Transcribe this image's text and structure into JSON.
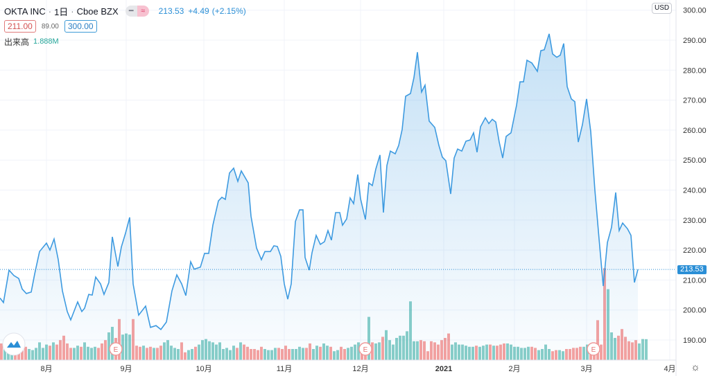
{
  "header": {
    "symbol": "OKTA INC",
    "interval": "1日",
    "exchange": "Cboe BZX",
    "sep": "·",
    "toggle_icons": [
      "minus-icon",
      "approx-icon"
    ],
    "last": "213.53",
    "change": "+4.49",
    "change_pct": "(+2.15%)",
    "low_box": "211.00",
    "spread": "89.00",
    "high_box": "300.00",
    "volume_label": "出来高",
    "volume_value": "1.888M"
  },
  "price_axis": {
    "currency": "USD",
    "ticks": [
      "190.00",
      "200.00",
      "210.00",
      "220.00",
      "230.00",
      "240.00",
      "250.00",
      "260.00",
      "270.00",
      "280.00",
      "290.00",
      "300.00"
    ],
    "last_price_tag": "213.53"
  },
  "time_axis": {
    "labels": [
      {
        "t": 13.4,
        "label": "8月"
      },
      {
        "t": 36.4,
        "label": "9月"
      },
      {
        "t": 58.8,
        "label": "10月"
      },
      {
        "t": 82,
        "label": "11月"
      },
      {
        "t": 104,
        "label": "12月"
      },
      {
        "t": 128,
        "label": "2021"
      },
      {
        "t": 148.4,
        "label": "2月"
      },
      {
        "t": 169.2,
        "label": "3月"
      },
      {
        "t": 193.2,
        "label": "4月"
      }
    ]
  },
  "earnings_markers": [
    {
      "t": 33.4,
      "label": "E"
    },
    {
      "t": 105.4,
      "label": "E"
    },
    {
      "t": 171.2,
      "label": "E"
    }
  ],
  "colors": {
    "line": "#3d9ae0",
    "up": "#26a69a",
    "down": "#ef5350",
    "accent": "#2b8fd6"
  },
  "chart_data": {
    "type": "area",
    "title": "OKTA INC · 1日 · Cboe BZX",
    "ylabel": "USD",
    "ylim": [
      185,
      303
    ],
    "price": [
      [
        0,
        204
      ],
      [
        1,
        202.5
      ],
      [
        2.6,
        213.3
      ],
      [
        4,
        211.5
      ],
      [
        5.4,
        210.5
      ],
      [
        6.4,
        207
      ],
      [
        7.6,
        205.5
      ],
      [
        9,
        206
      ],
      [
        10,
        212
      ],
      [
        11.4,
        219.5
      ],
      [
        13.4,
        222.3
      ],
      [
        14.4,
        220
      ],
      [
        15.6,
        223.7
      ],
      [
        16.8,
        216.8
      ],
      [
        18,
        206.4
      ],
      [
        19.4,
        199.5
      ],
      [
        20.4,
        196.7
      ],
      [
        22.4,
        202.7
      ],
      [
        23.6,
        199.5
      ],
      [
        24.4,
        200.6
      ],
      [
        25.6,
        205.2
      ],
      [
        26.6,
        205
      ],
      [
        27.6,
        211
      ],
      [
        29,
        208.7
      ],
      [
        30,
        205.2
      ],
      [
        31.4,
        209.2
      ],
      [
        32.4,
        224.4
      ],
      [
        34,
        214.5
      ],
      [
        35,
        221
      ],
      [
        36.2,
        225.6
      ],
      [
        37.4,
        230.9
      ],
      [
        38.4,
        208.7
      ],
      [
        40,
        198.3
      ],
      [
        42,
        201.3
      ],
      [
        43.4,
        194.2
      ],
      [
        45,
        194.8
      ],
      [
        46.4,
        193.5
      ],
      [
        48,
        196
      ],
      [
        49.6,
        206.4
      ],
      [
        51,
        211.7
      ],
      [
        52.4,
        208.7
      ],
      [
        53.6,
        204.8
      ],
      [
        55,
        216.1
      ],
      [
        56,
        213.6
      ],
      [
        57.8,
        214.3
      ],
      [
        59,
        218.9
      ],
      [
        60.2,
        218.9
      ],
      [
        61.4,
        228.3
      ],
      [
        63,
        236.4
      ],
      [
        64,
        237.6
      ],
      [
        65,
        236.9
      ],
      [
        66.2,
        245.7
      ],
      [
        67.4,
        247.3
      ],
      [
        68.6,
        242.9
      ],
      [
        69.6,
        246.4
      ],
      [
        71.6,
        242.4
      ],
      [
        72.4,
        231.3
      ],
      [
        74,
        220.7
      ],
      [
        75.4,
        216.8
      ],
      [
        76.4,
        219.5
      ],
      [
        78,
        219.5
      ],
      [
        79,
        221.4
      ],
      [
        80,
        221.2
      ],
      [
        81,
        217.9
      ],
      [
        82,
        208.7
      ],
      [
        83,
        203.6
      ],
      [
        84,
        208.7
      ],
      [
        85.2,
        229.5
      ],
      [
        86.4,
        233.4
      ],
      [
        87.4,
        233.4
      ],
      [
        88,
        217.5
      ],
      [
        89.2,
        213.3
      ],
      [
        90,
        219.1
      ],
      [
        91.2,
        224.9
      ],
      [
        92.4,
        221.9
      ],
      [
        93.6,
        222.8
      ],
      [
        94.6,
        226.5
      ],
      [
        95.6,
        223.3
      ],
      [
        96.8,
        232.5
      ],
      [
        98,
        232.5
      ],
      [
        98.8,
        228.3
      ],
      [
        100,
        230.4
      ],
      [
        101,
        237.4
      ],
      [
        102,
        235.5
      ],
      [
        103.2,
        245.2
      ],
      [
        104,
        237.1
      ],
      [
        105.4,
        230.2
      ],
      [
        106.4,
        242.4
      ],
      [
        107.4,
        241.5
      ],
      [
        108.4,
        247
      ],
      [
        109.6,
        251.7
      ],
      [
        110.6,
        232.5
      ],
      [
        111.6,
        248.2
      ],
      [
        112.6,
        253
      ],
      [
        114,
        252.1
      ],
      [
        115,
        254.9
      ],
      [
        116,
        260.2
      ],
      [
        117,
        271.3
      ],
      [
        118.4,
        272.2
      ],
      [
        119.4,
        277.5
      ],
      [
        120.4,
        286
      ],
      [
        121.6,
        272.7
      ],
      [
        122.6,
        275
      ],
      [
        123.8,
        263
      ],
      [
        125.4,
        260.9
      ],
      [
        126.6,
        254.9
      ],
      [
        127.6,
        251
      ],
      [
        128.6,
        249.8
      ],
      [
        130,
        238.7
      ],
      [
        131,
        250.7
      ],
      [
        132,
        253.7
      ],
      [
        133.2,
        253
      ],
      [
        134.4,
        256.3
      ],
      [
        135.6,
        256.7
      ],
      [
        136.6,
        259.1
      ],
      [
        137.6,
        252.6
      ],
      [
        138.6,
        261.1
      ],
      [
        140,
        264.1
      ],
      [
        141,
        262.2
      ],
      [
        142,
        263.6
      ],
      [
        143,
        262.7
      ],
      [
        144,
        256
      ],
      [
        145,
        250.7
      ],
      [
        146,
        257.9
      ],
      [
        147.4,
        259.1
      ],
      [
        149,
        268.3
      ],
      [
        150,
        276.1
      ],
      [
        151,
        276.1
      ],
      [
        152,
        283.3
      ],
      [
        153.4,
        282.4
      ],
      [
        155,
        279.6
      ],
      [
        156,
        286.5
      ],
      [
        157,
        286.8
      ],
      [
        158.4,
        292.1
      ],
      [
        159.4,
        285.4
      ],
      [
        160.6,
        284.3
      ],
      [
        161.6,
        285
      ],
      [
        162.6,
        288.9
      ],
      [
        163.6,
        274.5
      ],
      [
        164.8,
        270.4
      ],
      [
        165.8,
        269.5
      ],
      [
        166.8,
        256
      ],
      [
        168,
        261.8
      ],
      [
        169.2,
        270.4
      ],
      [
        170.4,
        259.5
      ],
      [
        171.6,
        239.9
      ],
      [
        172.8,
        223.7
      ],
      [
        174,
        208
      ],
      [
        175.2,
        222.5
      ],
      [
        176.4,
        227.6
      ],
      [
        177.6,
        239.2
      ],
      [
        178.6,
        226.5
      ],
      [
        179.6,
        229
      ],
      [
        181,
        227.1
      ],
      [
        182,
        224.9
      ],
      [
        183,
        209.2
      ],
      [
        184,
        213.5
      ]
    ],
    "volume_millions": [
      1.5,
      1.2,
      1.0,
      1.1,
      1.3,
      1.0,
      1.1,
      1.2,
      1.0,
      0.9,
      1.1,
      1.6,
      1.1,
      1.4,
      1.3,
      1.6,
      1.4,
      1.8,
      2.2,
      1.5,
      1.1,
      1.1,
      1.3,
      1.2,
      1.6,
      1.2,
      1.1,
      1.2,
      1.1,
      1.5,
      1.8,
      2.5,
      3.0,
      2.0,
      3.7,
      2.3,
      2.4,
      2.3,
      3.7,
      1.3,
      1.2,
      1.3,
      1.1,
      1.2,
      1.1,
      1.1,
      1.3,
      1.6,
      1.8,
      1.3,
      1.1,
      1.0,
      1.6,
      0.7,
      0.9,
      1.0,
      1.2,
      1.4,
      1.8,
      1.9,
      1.7,
      1.6,
      1.4,
      1.6,
      1.0,
      1.1,
      0.9,
      1.3,
      1.1,
      1.6,
      1.4,
      1.2,
      1.0,
      1.0,
      0.9,
      1.2,
      1.0,
      0.9,
      0.9,
      1.1,
      1.1,
      1.0,
      1.3,
      1.0,
      1.0,
      1.0,
      1.2,
      1.1,
      1.1,
      1.5,
      1.0,
      1.3,
      1.2,
      1.5,
      1.3,
      1.2,
      0.8,
      0.9,
      1.2,
      1.0,
      1.1,
      1.2,
      1.4,
      1.6,
      1.1,
      1.0,
      3.9,
      1.6,
      1.5,
      1.6,
      2.1,
      2.7,
      1.8,
      1.4,
      2.0,
      2.2,
      2.2,
      2.6,
      5.3,
      1.7,
      1.7,
      1.8,
      1.7,
      0.8,
      1.7,
      1.6,
      1.4,
      1.8,
      2.0,
      2.4,
      1.4,
      1.6,
      1.4,
      1.4,
      1.3,
      1.2,
      1.2,
      1.3,
      1.2,
      1.3,
      1.4,
      1.4,
      1.3,
      1.3,
      1.4,
      1.5,
      1.5,
      1.4,
      1.2,
      1.2,
      1.1,
      1.1,
      1.2,
      1.2,
      1.1,
      0.9,
      1.0,
      1.4,
      1.0,
      0.8,
      0.9,
      0.9,
      0.8,
      1.0,
      1.0,
      1.1,
      1.1,
      1.2,
      1.2,
      1.4,
      1.0,
      1.3,
      3.6,
      1.4,
      8.3,
      6.4,
      2.5,
      2.0,
      2.2,
      2.8,
      2.1,
      1.7,
      1.6,
      1.8,
      1.5,
      1.9,
      1.888
    ]
  }
}
